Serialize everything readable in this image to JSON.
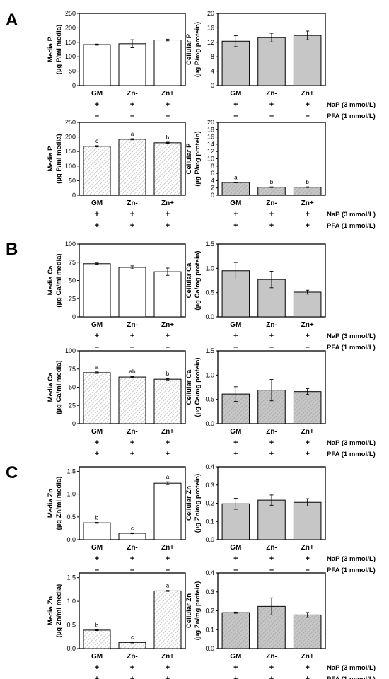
{
  "panels": [
    {
      "label": "A"
    },
    {
      "label": "B"
    },
    {
      "label": "C"
    }
  ],
  "row_labels": {
    "nap": "NaP (3 mmol/L)",
    "pfa": "PFA (1 mmol/L)"
  },
  "chart_data": [
    {
      "type": "bar",
      "categories": [
        "GM",
        "Zn-",
        "Zn+"
      ],
      "values": [
        142,
        145,
        158
      ],
      "errors": [
        2,
        14,
        3
      ],
      "ylabel": [
        "Media P",
        "(µg P/ml media)"
      ],
      "ylim": [
        0,
        250
      ],
      "yticks": [
        "0",
        "50",
        "100",
        "150",
        "200",
        "250"
      ],
      "fill": "white",
      "sig": [],
      "nap": [
        "+",
        "+",
        "+"
      ],
      "pfa": [
        "–",
        "–",
        "–"
      ]
    },
    {
      "type": "bar",
      "categories": [
        "GM",
        "Zn-",
        "Zn+"
      ],
      "values": [
        12.3,
        13.3,
        13.9
      ],
      "errors": [
        1.5,
        1.2,
        1.2
      ],
      "ylabel": [
        "Cellular P",
        "(µg P/mg protein)"
      ],
      "ylim": [
        0,
        20
      ],
      "yticks": [
        "0",
        "4",
        "8",
        "12",
        "16",
        "20"
      ],
      "fill": "gray",
      "sig": [],
      "nap": [
        "+",
        "+",
        "+"
      ],
      "pfa": [
        "–",
        "–",
        "–"
      ]
    },
    {
      "type": "bar",
      "categories": [
        "GM",
        "Zn-",
        "Zn+"
      ],
      "values": [
        168,
        192,
        180
      ],
      "errors": [
        2,
        2,
        2
      ],
      "ylabel": [
        "Media P",
        "(µg P/ml media)"
      ],
      "ylim": [
        0,
        250
      ],
      "yticks": [
        "0",
        "50",
        "100",
        "150",
        "200",
        "250"
      ],
      "fill": "hatch",
      "sig": [
        "c",
        "a",
        "b"
      ],
      "nap": [
        "+",
        "+",
        "+"
      ],
      "pfa": [
        "+",
        "+",
        "+"
      ]
    },
    {
      "type": "bar",
      "categories": [
        "GM",
        "Zn-",
        "Zn+"
      ],
      "values": [
        3.5,
        2.2,
        2.2
      ],
      "errors": [
        0.1,
        0.1,
        0.1
      ],
      "ylabel": [
        "Cellular P",
        "(µg P/mg protein)"
      ],
      "ylim": [
        0,
        20
      ],
      "yticks": [
        "0",
        "2",
        "4",
        "6",
        "8",
        "10",
        "12",
        "14",
        "16",
        "18",
        "20"
      ],
      "fill": "grayhatch",
      "sig": [
        "a",
        "b",
        "b"
      ],
      "nap": [
        "+",
        "+",
        "+"
      ],
      "pfa": [
        "+",
        "+",
        "+"
      ]
    },
    {
      "type": "bar",
      "categories": [
        "GM",
        "Zn-",
        "Zn+"
      ],
      "values": [
        73,
        68,
        62
      ],
      "errors": [
        1,
        2,
        5
      ],
      "ylabel": [
        "Media Ca",
        "(µg Ca/ml media)"
      ],
      "ylim": [
        0,
        100
      ],
      "yticks": [
        "0",
        "25",
        "50",
        "75",
        "100"
      ],
      "fill": "white",
      "sig": [],
      "nap": [
        "+",
        "+",
        "+"
      ],
      "pfa": [
        "–",
        "–",
        "–"
      ]
    },
    {
      "type": "bar",
      "categories": [
        "GM",
        "Zn-",
        "Zn+"
      ],
      "values": [
        0.95,
        0.77,
        0.51
      ],
      "errors": [
        0.17,
        0.17,
        0.04
      ],
      "ylabel": [
        "Cellular Ca",
        "(µg Ca/mg protein)"
      ],
      "ylim": [
        0,
        1.5
      ],
      "yticks": [
        "0.0",
        "0.5",
        "1.0",
        "1.5"
      ],
      "fill": "gray",
      "sig": [],
      "nap": [
        "+",
        "+",
        "+"
      ],
      "pfa": [
        "–",
        "–",
        "–"
      ]
    },
    {
      "type": "bar",
      "categories": [
        "GM",
        "Zn-",
        "Zn+"
      ],
      "values": [
        70,
        64,
        61
      ],
      "errors": [
        1,
        1,
        1
      ],
      "ylabel": [
        "Media Ca",
        "(µg Ca/ml media)"
      ],
      "ylim": [
        0,
        100
      ],
      "yticks": [
        "0",
        "25",
        "50",
        "75",
        "100"
      ],
      "fill": "hatch",
      "sig": [
        "a",
        "ab",
        "b"
      ],
      "nap": [
        "+",
        "+",
        "+"
      ],
      "pfa": [
        "+",
        "+",
        "+"
      ]
    },
    {
      "type": "bar",
      "categories": [
        "GM",
        "Zn-",
        "Zn+"
      ],
      "values": [
        0.61,
        0.69,
        0.66
      ],
      "errors": [
        0.15,
        0.22,
        0.06
      ],
      "ylabel": [
        "Cellular Ca",
        "(µg Ca/mg protein)"
      ],
      "ylim": [
        0,
        1.5
      ],
      "yticks": [
        "0.0",
        "0.5",
        "1.0",
        "1.5"
      ],
      "fill": "grayhatch",
      "sig": [],
      "nap": [
        "+",
        "+",
        "+"
      ],
      "pfa": [
        "+",
        "+",
        "+"
      ]
    },
    {
      "type": "bar",
      "categories": [
        "GM",
        "Zn-",
        "Zn+"
      ],
      "values": [
        0.37,
        0.14,
        1.24
      ],
      "errors": [
        0.01,
        0.01,
        0.03
      ],
      "ylabel": [
        "Media Zn",
        "(µg Zn/ml media)"
      ],
      "ylim": [
        0,
        1.6
      ],
      "yticks": [
        "0.0",
        "0.5",
        "1.0",
        "1.5"
      ],
      "fill": "white",
      "sig": [
        "b",
        "c",
        "a"
      ],
      "nap": [
        "+",
        "+",
        "+"
      ],
      "pfa": [
        "–",
        "–",
        "–"
      ]
    },
    {
      "type": "bar",
      "categories": [
        "GM",
        "Zn-",
        "Zn+"
      ],
      "values": [
        0.197,
        0.217,
        0.205
      ],
      "errors": [
        0.03,
        0.028,
        0.02
      ],
      "ylabel": [
        "Cellular Zn",
        "(µg Zn/mg protein)"
      ],
      "ylim": [
        0,
        0.4
      ],
      "yticks": [
        "0.0",
        "0.1",
        "0.2",
        "0.3",
        "0.4"
      ],
      "fill": "gray",
      "sig": [],
      "nap": [
        "+",
        "+",
        "+"
      ],
      "pfa": [
        "–",
        "–",
        "–"
      ]
    },
    {
      "type": "bar",
      "categories": [
        "GM",
        "Zn-",
        "Zn+"
      ],
      "values": [
        0.39,
        0.13,
        1.22
      ],
      "errors": [
        0.01,
        0.01,
        0.01
      ],
      "ylabel": [
        "Media Zn",
        "(µg Zn/ml media)"
      ],
      "ylim": [
        0,
        1.6
      ],
      "yticks": [
        "0.0",
        "0.5",
        "1.0",
        "1.5"
      ],
      "fill": "hatch",
      "sig": [
        "b",
        "c",
        "a"
      ],
      "nap": [
        "+",
        "+",
        "+"
      ],
      "pfa": [
        "+",
        "+",
        "+"
      ]
    },
    {
      "type": "bar",
      "categories": [
        "GM",
        "Zn-",
        "Zn+"
      ],
      "values": [
        0.19,
        0.223,
        0.178
      ],
      "errors": [
        0.003,
        0.045,
        0.013
      ],
      "ylabel": [
        "Cellular Zn",
        "(µg Zn/mg protein)"
      ],
      "ylim": [
        0,
        0.4
      ],
      "yticks": [
        "0.0",
        "0.1",
        "0.2",
        "0.3",
        "0.4"
      ],
      "fill": "grayhatch",
      "sig": [],
      "nap": [
        "+",
        "+",
        "+"
      ],
      "pfa": [
        "+",
        "+",
        "+"
      ]
    }
  ]
}
